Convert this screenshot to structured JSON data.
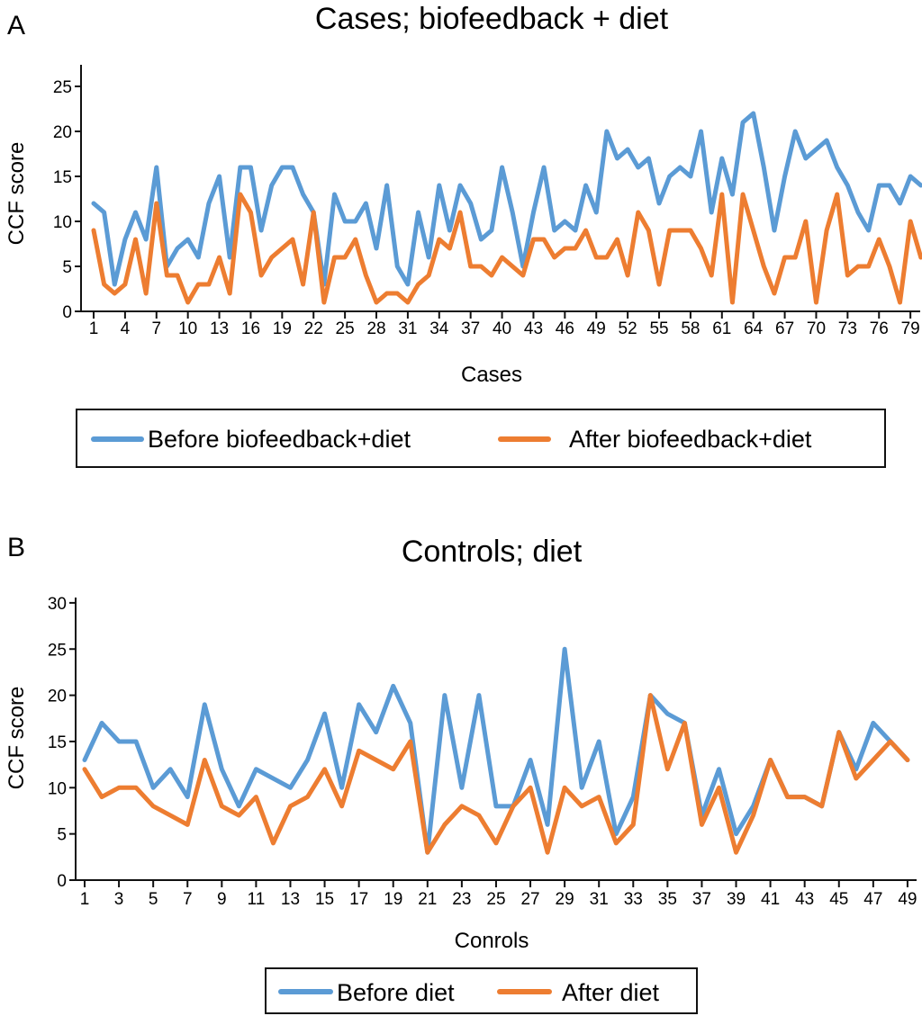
{
  "chart_data": [
    {
      "type": "line",
      "panel": "A",
      "title": "Cases; biofeedback + diet",
      "xlabel": "Cases",
      "ylabel": "CCF score",
      "ylim": [
        0,
        27
      ],
      "yticks": [
        0,
        5,
        10,
        15,
        20,
        25
      ],
      "xticks": [
        1,
        4,
        7,
        10,
        13,
        16,
        19,
        22,
        25,
        28,
        31,
        34,
        37,
        40,
        43,
        46,
        49,
        52,
        55,
        58,
        61,
        64,
        67,
        70,
        73,
        76,
        79
      ],
      "grid": false,
      "legend_position": "bottom",
      "x": [
        1,
        2,
        3,
        4,
        5,
        6,
        7,
        8,
        9,
        10,
        11,
        12,
        13,
        14,
        15,
        16,
        17,
        18,
        19,
        20,
        21,
        22,
        23,
        24,
        25,
        26,
        27,
        28,
        29,
        30,
        31,
        32,
        33,
        34,
        35,
        36,
        37,
        38,
        39,
        40,
        41,
        42,
        43,
        44,
        45,
        46,
        47,
        48,
        49,
        50,
        51,
        52,
        53,
        54,
        55,
        56,
        57,
        58,
        59,
        60,
        61,
        62,
        63,
        64,
        65,
        66,
        67,
        68,
        69,
        70,
        71,
        72,
        73,
        74,
        75,
        76,
        77,
        78,
        79,
        80
      ],
      "series": [
        {
          "name": "Before biofeedback+diet",
          "color": "#5b9bd5",
          "values": [
            12,
            11,
            3,
            8,
            11,
            8,
            16,
            5,
            7,
            8,
            6,
            12,
            15,
            6,
            16,
            16,
            9,
            14,
            16,
            16,
            13,
            11,
            3,
            13,
            10,
            10,
            12,
            7,
            14,
            5,
            3,
            11,
            6,
            14,
            9,
            14,
            12,
            8,
            9,
            16,
            11,
            5,
            11,
            16,
            9,
            10,
            9,
            14,
            11,
            20,
            17,
            18,
            16,
            17,
            12,
            15,
            16,
            15,
            20,
            11,
            17,
            13,
            21,
            22,
            16,
            9,
            15,
            20,
            17,
            18,
            19,
            16,
            14,
            11,
            9,
            14,
            14,
            12,
            15,
            14
          ]
        },
        {
          "name": "After biofeedback+diet",
          "color": "#ed7d31",
          "values": [
            9,
            3,
            2,
            3,
            8,
            2,
            12,
            4,
            4,
            1,
            3,
            3,
            6,
            2,
            13,
            11,
            4,
            6,
            7,
            8,
            3,
            11,
            1,
            6,
            6,
            8,
            4,
            1,
            2,
            2,
            1,
            3,
            4,
            8,
            7,
            11,
            5,
            5,
            4,
            6,
            5,
            4,
            8,
            8,
            6,
            7,
            7,
            9,
            6,
            6,
            8,
            4,
            11,
            9,
            3,
            9,
            9,
            9,
            7,
            4,
            13,
            1,
            13,
            9,
            5,
            2,
            6,
            6,
            10,
            1,
            9,
            13,
            4,
            5,
            5,
            8,
            5,
            1,
            10,
            6
          ]
        }
      ]
    },
    {
      "type": "line",
      "panel": "B",
      "title": "Controls; diet",
      "xlabel": "Conrols",
      "ylabel": "CCF score",
      "ylim": [
        0,
        30
      ],
      "yticks": [
        0,
        5,
        10,
        15,
        20,
        25,
        30
      ],
      "xticks": [
        1,
        3,
        5,
        7,
        9,
        11,
        13,
        15,
        17,
        19,
        21,
        23,
        25,
        27,
        29,
        31,
        33,
        35,
        37,
        39,
        41,
        43,
        45,
        47,
        49
      ],
      "grid": false,
      "legend_position": "bottom",
      "x": [
        1,
        2,
        3,
        4,
        5,
        6,
        7,
        8,
        9,
        10,
        11,
        12,
        13,
        14,
        15,
        16,
        17,
        18,
        19,
        20,
        21,
        22,
        23,
        24,
        25,
        26,
        27,
        28,
        29,
        30,
        31,
        32,
        33,
        34,
        35,
        36,
        37,
        38,
        39,
        40,
        41,
        42,
        43,
        44,
        45,
        46,
        47,
        48,
        49
      ],
      "series": [
        {
          "name": "Before diet",
          "color": "#5b9bd5",
          "values": [
            13,
            17,
            15,
            15,
            10,
            12,
            9,
            19,
            12,
            8,
            12,
            11,
            10,
            13,
            18,
            10,
            19,
            16,
            21,
            17,
            3,
            20,
            10,
            20,
            8,
            8,
            13,
            6,
            25,
            10,
            15,
            5,
            9,
            20,
            18,
            17,
            7,
            12,
            5,
            8,
            13,
            9,
            9,
            8,
            16,
            12,
            17,
            15,
            13
          ]
        },
        {
          "name": "After diet",
          "color": "#ed7d31",
          "values": [
            12,
            9,
            10,
            10,
            8,
            7,
            6,
            13,
            8,
            7,
            9,
            4,
            8,
            9,
            12,
            8,
            14,
            13,
            12,
            15,
            3,
            6,
            8,
            7,
            4,
            8,
            10,
            3,
            10,
            8,
            9,
            4,
            6,
            20,
            12,
            17,
            6,
            10,
            3,
            7,
            13,
            9,
            9,
            8,
            16,
            11,
            13,
            15,
            13
          ]
        }
      ]
    }
  ]
}
